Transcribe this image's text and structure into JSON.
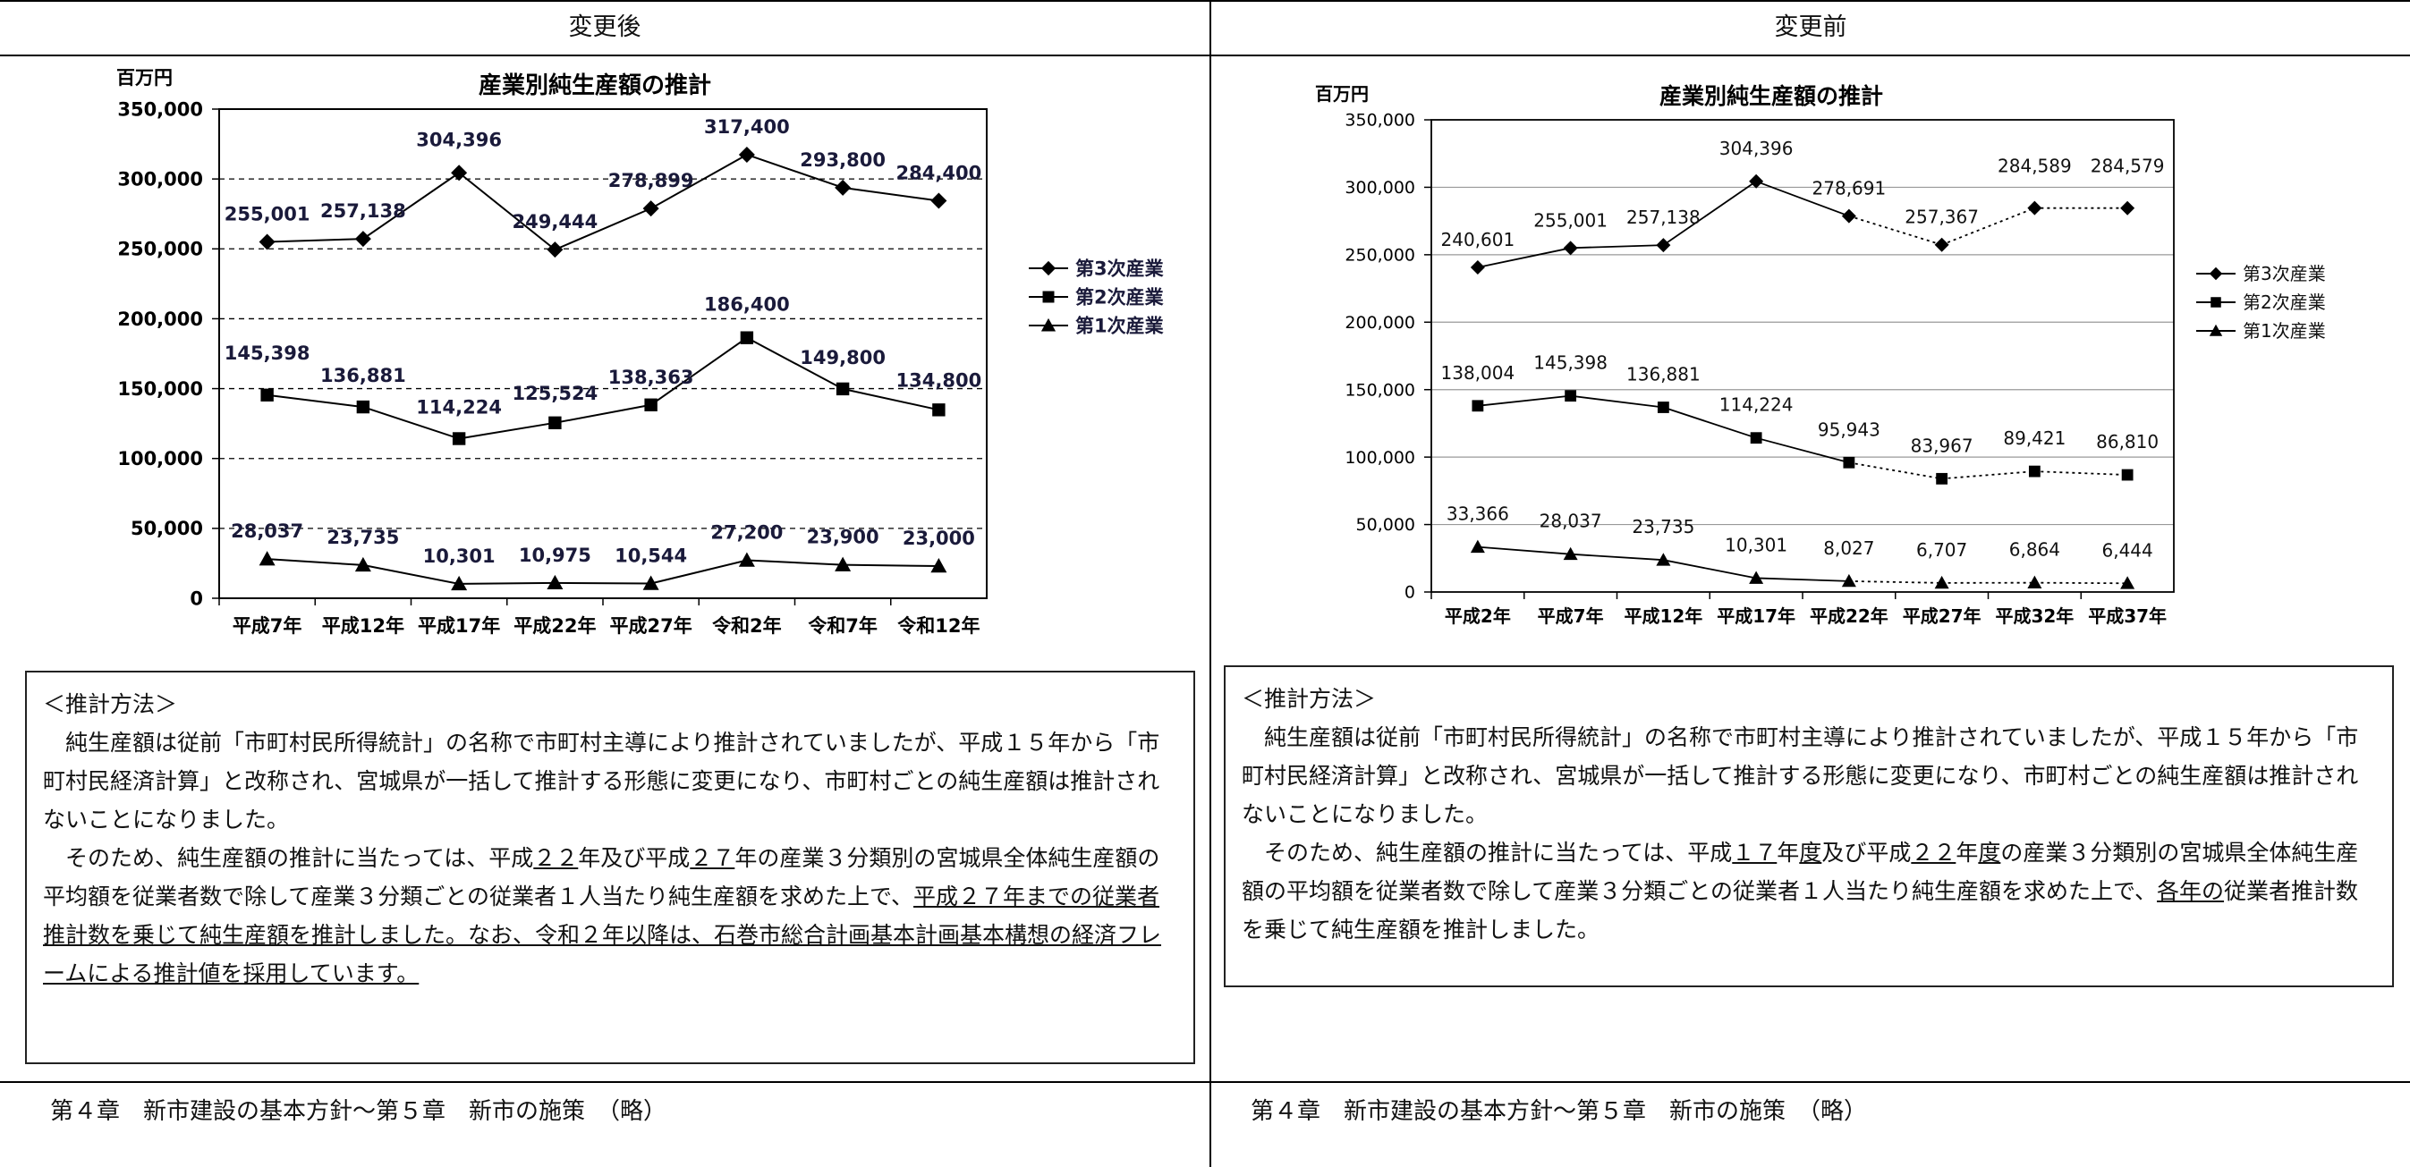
{
  "header": {
    "left": "変更後",
    "right": "変更前"
  },
  "charts": {
    "after": {
      "chart_data": {
        "type": "line",
        "title": "産業別純生産額の推計",
        "ylabel": "百万円",
        "ylim": [
          0,
          350000
        ],
        "yticks": [
          0,
          50000,
          100000,
          150000,
          200000,
          250000,
          300000,
          350000
        ],
        "ytick_labels": [
          "0",
          "50,000",
          "100,000",
          "150,000",
          "200,000",
          "250,000",
          "300,000",
          "350,000"
        ],
        "categories": [
          "平成7年",
          "平成12年",
          "平成17年",
          "平成22年",
          "平成27年",
          "令和2年",
          "令和7年",
          "令和12年"
        ],
        "grid": "dashed",
        "legend_position": "right",
        "series": [
          {
            "name": "第3次産業",
            "marker": "diamond",
            "values": [
              255001,
              257138,
              304396,
              249444,
              278899,
              317400,
              293800,
              284400
            ],
            "labels": [
              "255,001",
              "257,138",
              "304,396",
              "249,444",
              "278,899",
              "317,400",
              "293,800",
              "284,400"
            ]
          },
          {
            "name": "第2次産業",
            "marker": "square",
            "values": [
              145398,
              136881,
              114224,
              125524,
              138363,
              186400,
              149800,
              134800
            ],
            "labels": [
              "145,398",
              "136,881",
              "114,224",
              "125,524",
              "138,363",
              "186,400",
              "149,800",
              "134,800"
            ]
          },
          {
            "name": "第1次産業",
            "marker": "triangle",
            "values": [
              28037,
              23735,
              10301,
              10975,
              10544,
              27200,
              23900,
              23000
            ],
            "labels": [
              "28,037",
              "23,735",
              "10,301",
              "10,975",
              "10,544",
              "27,200",
              "23,900",
              "23,000"
            ]
          }
        ]
      }
    },
    "before": {
      "chart_data": {
        "type": "line",
        "title": "産業別純生産額の推計",
        "ylabel": "百万円",
        "ylim": [
          0,
          350000
        ],
        "yticks": [
          0,
          50000,
          100000,
          150000,
          200000,
          250000,
          300000,
          350000
        ],
        "ytick_labels": [
          "0",
          "50,000",
          "100,000",
          "150,000",
          "200,000",
          "250,000",
          "300,000",
          "350,000"
        ],
        "categories": [
          "平成2年",
          "平成7年",
          "平成12年",
          "平成17年",
          "平成22年",
          "平成27年",
          "平成32年",
          "平成37年"
        ],
        "grid": "solid",
        "legend_position": "right",
        "dotted_from_index": 4,
        "series": [
          {
            "name": "第3次産業",
            "marker": "diamond",
            "values": [
              240601,
              255001,
              257138,
              304396,
              278691,
              257367,
              284589,
              284579
            ],
            "labels": [
              "240,601",
              "255,001",
              "257,138",
              "304,396",
              "278,691",
              "257,367",
              "284,589",
              "284,579"
            ]
          },
          {
            "name": "第2次産業",
            "marker": "square",
            "values": [
              138004,
              145398,
              136881,
              114224,
              95943,
              83967,
              89421,
              86810
            ],
            "labels": [
              "138,004",
              "145,398",
              "136,881",
              "114,224",
              "95,943",
              "83,967",
              "89,421",
              "86,810"
            ]
          },
          {
            "name": "第1次産業",
            "marker": "triangle",
            "values": [
              33366,
              28037,
              23735,
              10301,
              8027,
              6707,
              6864,
              6444
            ],
            "labels": [
              "33,366",
              "28,037",
              "23,735",
              "10,301",
              "8,027",
              "6,707",
              "6,864",
              "6,444"
            ]
          }
        ]
      }
    }
  },
  "method_after": {
    "heading": "＜推計方法＞",
    "p1": "純生産額は従前「市町村民所得統計」の名称で市町村主導により推計されていましたが、平成１５年から「市町村民経済計算」と改称され、宮城県が一括して推計する形態に変更になり、市町村ごとの純生産額は推計されないことになりました。",
    "p2_a": "そのため、純生産額の推計に当たっては、平成",
    "p2_b": "２２",
    "p2_c": "年及び平成",
    "p2_d": "２７",
    "p2_e": "年の産業３分類別の宮城県全体純生産額の平均額を従業者数で除して産業３分類ごとの従業者１人当たり純生産額を求めた上で、",
    "p2_f": "平成２７年までの従業者推計数を乗じて純生産額を推計しました。なお、令和２年以降は、石巻市総合計画基本計画基本構想の経済フレームによる推計値を採用しています。"
  },
  "method_before": {
    "heading": "＜推計方法＞",
    "p1": "純生産額は従前「市町村民所得統計」の名称で市町村主導により推計されていましたが、平成１５年から「市町村民経済計算」と改称され、宮城県が一括して推計する形態に変更になり、市町村ごとの純生産額は推計されないことになりました。",
    "p2_a": "そのため、純生産額の推計に当たっては、平成",
    "p2_b": "１７",
    "p2_c": "年",
    "p2_d": "度",
    "p2_e": "及び平成",
    "p2_f": "２２",
    "p2_g": "年",
    "p2_h": "度",
    "p2_i": "の産業３分類別の宮城県全体純生産額の平均額を従業者数で除して産業３分類ごとの従業者１人当たり純生産額を求めた上で、",
    "p2_j": "各年の",
    "p2_k": "従業者推計数を乗じて純生産額を推計しました。"
  },
  "footer": {
    "left": "第４章　新市建設の基本方針～第５章　新市の施策　（略）",
    "right": "第４章　新市建設の基本方針～第５章　新市の施策　（略）"
  }
}
